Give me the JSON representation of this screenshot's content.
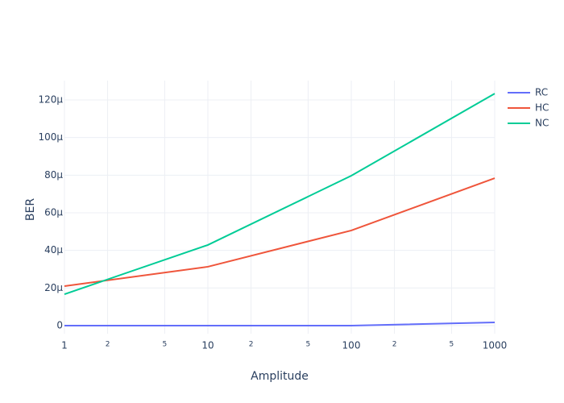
{
  "chart_data": {
    "type": "line",
    "x_label": "Amplitude",
    "y_label": "BER",
    "x": [
      1,
      10,
      100,
      1000
    ],
    "xscale": "log",
    "series": [
      {
        "name": "RC",
        "color": "#636efa",
        "values": [
          0,
          0,
          0,
          1.7e-06
        ]
      },
      {
        "name": "HC",
        "color": "#ef553b",
        "values": [
          2.1e-05,
          3.13e-05,
          5.06e-05,
          7.84e-05
        ]
      },
      {
        "name": "NC",
        "color": "#00cc96",
        "values": [
          1.67e-05,
          4.29e-05,
          7.97e-05,
          0.0001234
        ]
      }
    ],
    "xlim": [
      1,
      1000
    ],
    "xticks": [
      1,
      {
        "value": 2,
        "label": "2"
      },
      {
        "value": 5,
        "label": "5"
      },
      10,
      {
        "value": 20,
        "label": "2"
      },
      {
        "value": 50,
        "label": "5"
      },
      100,
      {
        "value": 200,
        "label": "2"
      },
      {
        "value": 500,
        "label": "5"
      },
      1000
    ],
    "ylim": [
      -4.3e-06,
      0.0001303
    ],
    "yticks": [
      0,
      {
        "value": 2e-05,
        "label": "20µ"
      },
      {
        "value": 4e-05,
        "label": "40µ"
      },
      {
        "value": 6e-05,
        "label": "60µ"
      },
      {
        "value": 8e-05,
        "label": "80µ"
      },
      {
        "value": 0.0001,
        "label": "100µ"
      },
      {
        "value": 0.00012,
        "label": "120µ"
      }
    ],
    "grid": true,
    "legend": "top-right"
  }
}
